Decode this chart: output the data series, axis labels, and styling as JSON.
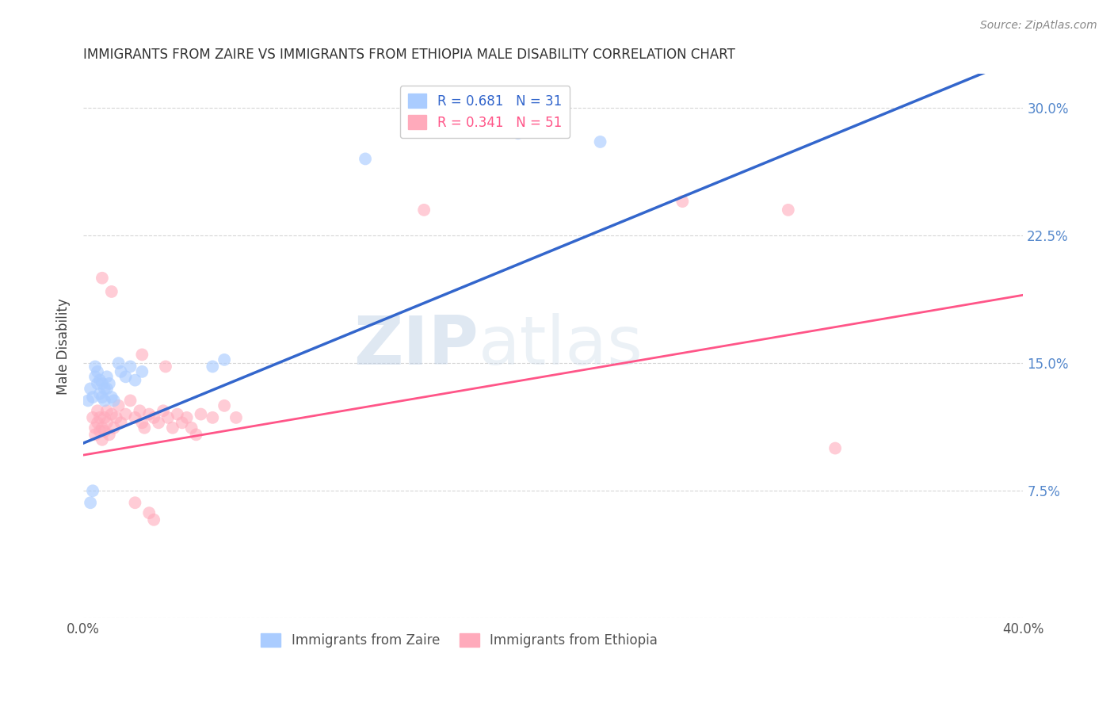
{
  "title": "IMMIGRANTS FROM ZAIRE VS IMMIGRANTS FROM ETHIOPIA MALE DISABILITY CORRELATION CHART",
  "source": "Source: ZipAtlas.com",
  "ylabel": "Male Disability",
  "xlim": [
    0.0,
    0.4
  ],
  "ylim": [
    0.0,
    0.32
  ],
  "xticks": [
    0.0,
    0.1,
    0.2,
    0.3,
    0.4
  ],
  "xticklabels": [
    "0.0%",
    "",
    "",
    "",
    "40.0%"
  ],
  "yticks": [
    0.0,
    0.075,
    0.15,
    0.225,
    0.3
  ],
  "yticklabels": [
    "",
    "7.5%",
    "15.0%",
    "22.5%",
    "30.0%"
  ],
  "zaire_color": "#aaccff",
  "ethiopia_color": "#ffaabb",
  "zaire_line_color": "#3366cc",
  "ethiopia_line_color": "#ff5588",
  "background_color": "#ffffff",
  "grid_color": "#cccccc",
  "watermark_zip": "ZIP",
  "watermark_atlas": "atlas",
  "zaire_line": [
    0.0,
    0.103,
    0.4,
    0.33
  ],
  "ethiopia_line": [
    0.0,
    0.096,
    0.4,
    0.19
  ],
  "zaire_points": [
    [
      0.002,
      0.128
    ],
    [
      0.003,
      0.135
    ],
    [
      0.004,
      0.13
    ],
    [
      0.005,
      0.148
    ],
    [
      0.005,
      0.142
    ],
    [
      0.006,
      0.138
    ],
    [
      0.006,
      0.145
    ],
    [
      0.007,
      0.14
    ],
    [
      0.007,
      0.132
    ],
    [
      0.008,
      0.138
    ],
    [
      0.008,
      0.13
    ],
    [
      0.009,
      0.135
    ],
    [
      0.009,
      0.128
    ],
    [
      0.01,
      0.142
    ],
    [
      0.01,
      0.135
    ],
    [
      0.011,
      0.138
    ],
    [
      0.012,
      0.13
    ],
    [
      0.013,
      0.128
    ],
    [
      0.015,
      0.15
    ],
    [
      0.016,
      0.145
    ],
    [
      0.018,
      0.142
    ],
    [
      0.02,
      0.148
    ],
    [
      0.022,
      0.14
    ],
    [
      0.025,
      0.145
    ],
    [
      0.003,
      0.068
    ],
    [
      0.004,
      0.075
    ],
    [
      0.055,
      0.148
    ],
    [
      0.06,
      0.152
    ],
    [
      0.12,
      0.27
    ],
    [
      0.185,
      0.285
    ],
    [
      0.22,
      0.28
    ]
  ],
  "ethiopia_points": [
    [
      0.004,
      0.118
    ],
    [
      0.005,
      0.112
    ],
    [
      0.005,
      0.108
    ],
    [
      0.006,
      0.122
    ],
    [
      0.006,
      0.115
    ],
    [
      0.007,
      0.11
    ],
    [
      0.007,
      0.118
    ],
    [
      0.008,
      0.112
    ],
    [
      0.008,
      0.105
    ],
    [
      0.009,
      0.118
    ],
    [
      0.009,
      0.11
    ],
    [
      0.01,
      0.122
    ],
    [
      0.01,
      0.115
    ],
    [
      0.011,
      0.108
    ],
    [
      0.012,
      0.12
    ],
    [
      0.013,
      0.112
    ],
    [
      0.014,
      0.118
    ],
    [
      0.015,
      0.125
    ],
    [
      0.016,
      0.115
    ],
    [
      0.018,
      0.12
    ],
    [
      0.02,
      0.128
    ],
    [
      0.022,
      0.118
    ],
    [
      0.024,
      0.122
    ],
    [
      0.025,
      0.115
    ],
    [
      0.026,
      0.112
    ],
    [
      0.028,
      0.12
    ],
    [
      0.03,
      0.118
    ],
    [
      0.032,
      0.115
    ],
    [
      0.034,
      0.122
    ],
    [
      0.036,
      0.118
    ],
    [
      0.038,
      0.112
    ],
    [
      0.04,
      0.12
    ],
    [
      0.042,
      0.115
    ],
    [
      0.044,
      0.118
    ],
    [
      0.046,
      0.112
    ],
    [
      0.048,
      0.108
    ],
    [
      0.05,
      0.12
    ],
    [
      0.055,
      0.118
    ],
    [
      0.06,
      0.125
    ],
    [
      0.065,
      0.118
    ],
    [
      0.008,
      0.2
    ],
    [
      0.012,
      0.192
    ],
    [
      0.025,
      0.155
    ],
    [
      0.035,
      0.148
    ],
    [
      0.022,
      0.068
    ],
    [
      0.028,
      0.062
    ],
    [
      0.03,
      0.058
    ],
    [
      0.145,
      0.24
    ],
    [
      0.255,
      0.245
    ],
    [
      0.3,
      0.24
    ],
    [
      0.32,
      0.1
    ]
  ]
}
